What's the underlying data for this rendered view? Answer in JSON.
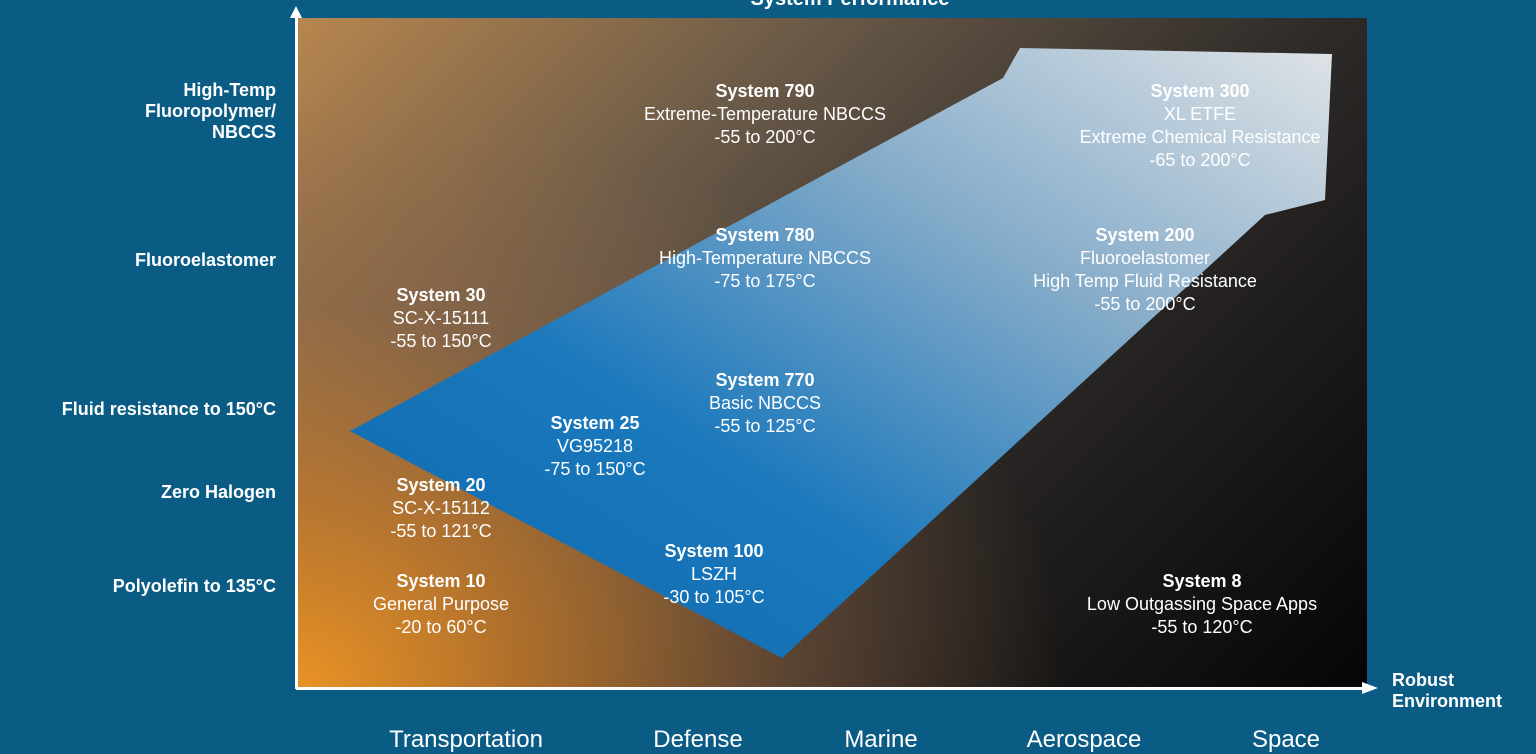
{
  "title": "System Performance",
  "y_labels": [
    "High-Temp\nFluoropolymer/\nNBCCS",
    "Fluoroelastomer",
    "Fluid resistance to 150°C",
    "Zero Halogen",
    "Polyolefin to 135°C"
  ],
  "x_axis_caption": "Robust\nEnvironment",
  "x_categories": [
    "Transportation",
    "Defense",
    "Marine",
    "Aerospace",
    "Space"
  ],
  "colors": {
    "background": "#0a5c85",
    "arrow_start": "#1a73b8",
    "arrow_end": "#d8dde2",
    "warm_corner": "#ec9424"
  },
  "systems": [
    {
      "name": "System 790",
      "lines": [
        "Extreme-Temperature NBCCS",
        "-55 to 200°C"
      ]
    },
    {
      "name": "System 300",
      "lines": [
        "XL ETFE",
        "Extreme Chemical Resistance",
        "-65 to 200°C"
      ]
    },
    {
      "name": "System 780",
      "lines": [
        "High-Temperature NBCCS",
        "-75 to 175°C"
      ]
    },
    {
      "name": "System 200",
      "lines": [
        "Fluoroelastomer",
        "High Temp Fluid Resistance",
        "-55 to 200°C"
      ]
    },
    {
      "name": "System 30",
      "lines": [
        "SC-X-15111",
        "-55 to 150°C"
      ]
    },
    {
      "name": "System 770",
      "lines": [
        "Basic NBCCS",
        "-55 to 125°C"
      ]
    },
    {
      "name": "System 25",
      "lines": [
        "VG95218",
        "-75 to 150°C"
      ]
    },
    {
      "name": "System 20",
      "lines": [
        "SC-X-15112",
        "-55 to 121°C"
      ]
    },
    {
      "name": "System 100",
      "lines": [
        "LSZH",
        "-30 to 105°C"
      ]
    },
    {
      "name": "System 10",
      "lines": [
        "General Purpose",
        "-20 to 60°C"
      ]
    },
    {
      "name": "System 8",
      "lines": [
        "Low Outgassing Space Apps",
        "-55 to 120°C"
      ]
    }
  ]
}
